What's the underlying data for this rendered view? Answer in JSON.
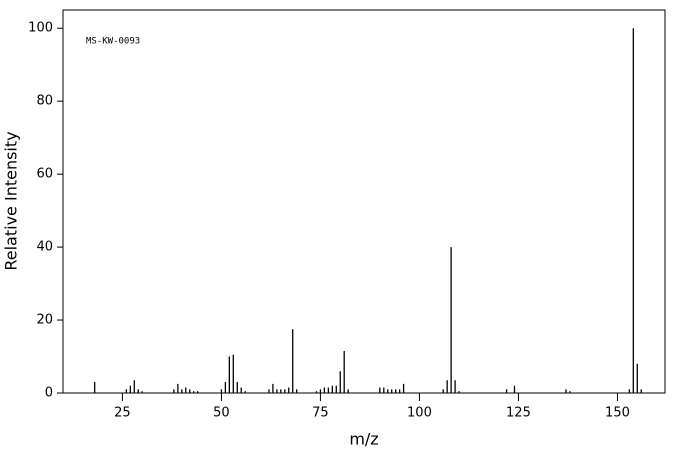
{
  "chart_data": {
    "type": "stem",
    "annotation": "MS-KW-0093",
    "xlabel": "m/z",
    "ylabel": "Relative Intensity",
    "color": "#000000",
    "x": [
      18,
      26,
      27,
      28,
      29,
      30,
      38,
      39,
      40,
      41,
      42,
      43,
      44,
      50,
      51,
      52,
      53,
      54,
      55,
      56,
      62,
      63,
      64,
      65,
      66,
      67,
      68,
      69,
      74,
      75,
      76,
      77,
      78,
      79,
      80,
      81,
      82,
      90,
      91,
      92,
      93,
      94,
      95,
      96,
      106,
      107,
      108,
      109,
      110,
      122,
      124,
      137,
      138,
      153,
      154,
      155,
      156
    ],
    "values": [
      3,
      1,
      2,
      3.5,
      1,
      0.5,
      1,
      2.5,
      1,
      1.5,
      1,
      0.5,
      0.5,
      1,
      3,
      10,
      10.5,
      3,
      1.5,
      0.5,
      1,
      2.5,
      1,
      1,
      1,
      1.5,
      17.5,
      1,
      0.5,
      1,
      1.5,
      1.5,
      2,
      2,
      6,
      11.5,
      1,
      1.5,
      1.5,
      1,
      1,
      1,
      1,
      2.5,
      1,
      3.5,
      40,
      3.5,
      0.5,
      1,
      2,
      1,
      0.5,
      1,
      100,
      8,
      1
    ],
    "xlim": [
      10,
      162
    ],
    "ylim": [
      0,
      105
    ],
    "xticks": [
      25,
      50,
      75,
      100,
      125,
      150
    ],
    "yticks": [
      0,
      20,
      40,
      60,
      80,
      100
    ]
  }
}
